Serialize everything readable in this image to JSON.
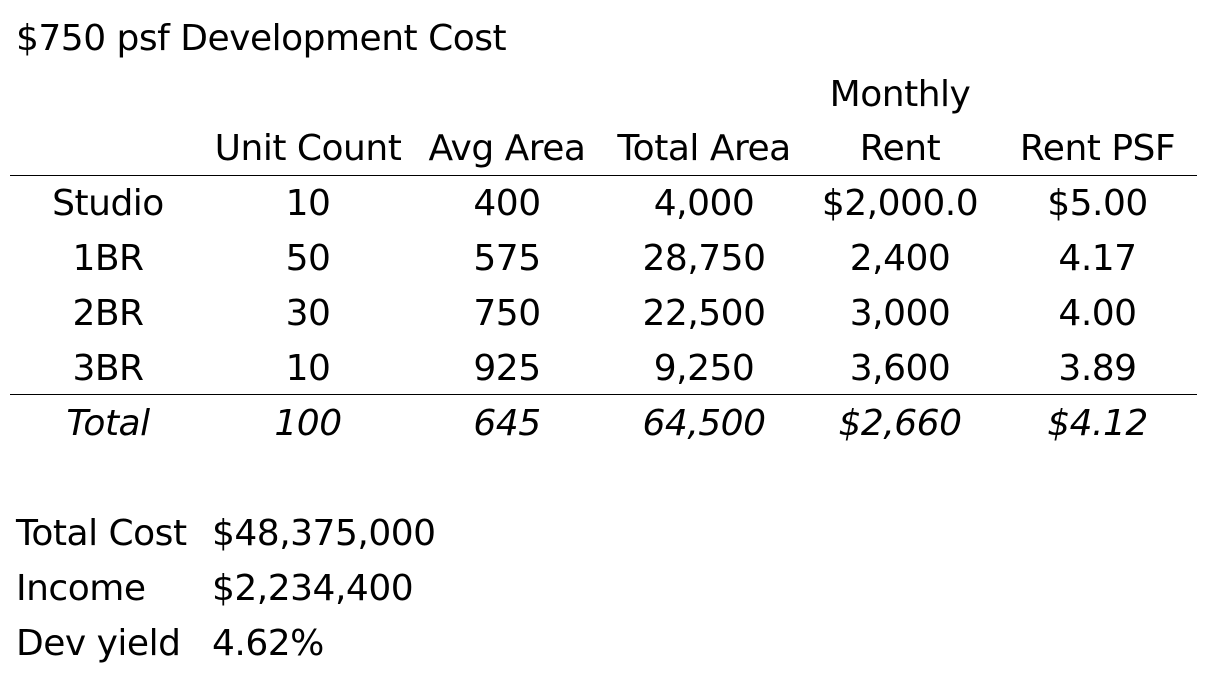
{
  "title": "$750 psf Development Cost",
  "table": {
    "headers": {
      "unit_count": "Unit Count",
      "avg_area": "Avg Area",
      "total_area": "Total Area",
      "monthly_rent_line1": "Monthly",
      "monthly_rent_line2": "Rent",
      "rent_psf": "Rent PSF"
    },
    "rows": [
      {
        "type": "Studio",
        "unit_count": "10",
        "avg_area": "400",
        "total_area": "4,000",
        "monthly_rent": "$2,000.0",
        "rent_psf": "$5.00"
      },
      {
        "type": "1BR",
        "unit_count": "50",
        "avg_area": "575",
        "total_area": "28,750",
        "monthly_rent": "2,400",
        "rent_psf": "4.17"
      },
      {
        "type": "2BR",
        "unit_count": "30",
        "avg_area": "750",
        "total_area": "22,500",
        "monthly_rent": "3,000",
        "rent_psf": "4.00"
      },
      {
        "type": "3BR",
        "unit_count": "10",
        "avg_area": "925",
        "total_area": "9,250",
        "monthly_rent": "3,600",
        "rent_psf": "3.89"
      }
    ],
    "total": {
      "type": "Total",
      "unit_count": "100",
      "avg_area": "645",
      "total_area": "64,500",
      "monthly_rent": "$2,660",
      "rent_psf": "$4.12"
    }
  },
  "summary": [
    {
      "label": "Total Cost",
      "value": "$48,375,000"
    },
    {
      "label": "Income",
      "value": "$2,234,400"
    },
    {
      "label": "Dev yield",
      "value": "4.62%"
    }
  ]
}
